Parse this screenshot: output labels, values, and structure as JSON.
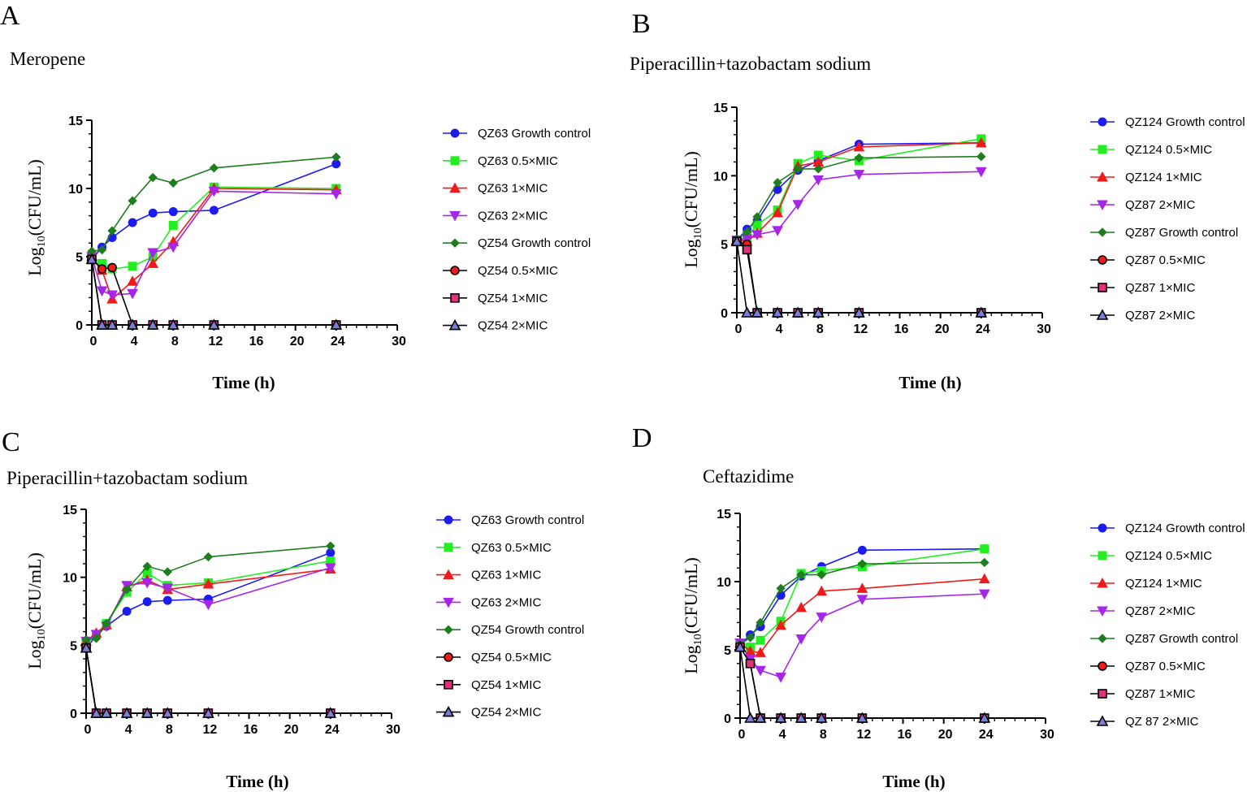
{
  "colors": {
    "blue": "#1c1cf0",
    "green": "#22ee22",
    "red": "#f01a1a",
    "purple": "#a526e8",
    "dkgreen": "#1e7d1e",
    "pink": "#e0317a",
    "black": "#000000",
    "lilac": "#7d7ddc"
  },
  "chart_data": [
    {
      "type": "line",
      "label": "A",
      "title": "Meropene",
      "xlabel": "Time (h)",
      "ylabel_main": "Log",
      "ylabel_sub": "10",
      "ylabel_rest": "(CFU/mL)",
      "xlim": [
        0,
        30
      ],
      "ylim": [
        0,
        15
      ],
      "xticks": [
        0,
        4,
        8,
        12,
        16,
        20,
        24,
        30
      ],
      "xtick_labels": [
        "0",
        "4",
        "8",
        "12",
        "16",
        "20",
        "24",
        "30"
      ],
      "yticks": [
        0,
        5,
        10,
        15
      ],
      "ytick_labels": [
        "0",
        "5",
        "10",
        "15"
      ],
      "series": [
        {
          "name": "QZ63 Growth control",
          "color": "blue",
          "marker": "circle",
          "x": [
            0,
            1,
            2,
            4,
            6,
            8,
            12,
            24
          ],
          "y": [
            4.8,
            5.7,
            6.4,
            7.5,
            8.2,
            8.3,
            8.4,
            11.8
          ]
        },
        {
          "name": "QZ63 0.5×MIC",
          "color": "green",
          "marker": "square",
          "x": [
            0,
            1,
            2,
            4,
            6,
            8,
            12,
            24
          ],
          "y": [
            5.0,
            4.5,
            4.1,
            4.3,
            5.0,
            7.3,
            10.1,
            10.0
          ]
        },
        {
          "name": "QZ63 1×MIC",
          "color": "red",
          "marker": "triangle",
          "x": [
            0,
            1,
            2,
            4,
            6,
            8,
            12,
            24
          ],
          "y": [
            5.0,
            4.0,
            1.9,
            3.2,
            4.5,
            6.1,
            10.0,
            9.9
          ]
        },
        {
          "name": "QZ63 2×MIC",
          "color": "purple",
          "marker": "tri-down",
          "x": [
            0,
            1,
            2,
            4,
            6,
            8,
            12,
            24
          ],
          "y": [
            5.0,
            2.5,
            2.2,
            2.3,
            5.3,
            5.7,
            9.8,
            9.6
          ]
        },
        {
          "name": "QZ54 Growth control",
          "color": "dkgreen",
          "marker": "diamond",
          "x": [
            0,
            1,
            2,
            4,
            6,
            8,
            12,
            24
          ],
          "y": [
            5.4,
            5.5,
            6.9,
            9.1,
            10.8,
            10.4,
            11.5,
            12.3
          ]
        },
        {
          "name": "QZ54 0.5×MIC",
          "color": "red",
          "edge": "black",
          "marker": "circle",
          "x": [
            0,
            1,
            2,
            4,
            6,
            8,
            12,
            24
          ],
          "y": [
            4.8,
            4.1,
            4.2,
            0,
            0,
            0,
            0,
            0
          ]
        },
        {
          "name": "QZ54 1×MIC",
          "color": "pink",
          "edge": "black",
          "marker": "square",
          "x": [
            0,
            1,
            2,
            4,
            6,
            8,
            12,
            24
          ],
          "y": [
            4.8,
            0,
            0,
            0,
            0,
            0,
            0,
            0
          ]
        },
        {
          "name": "QZ54 2×MIC",
          "color": "lilac",
          "edge": "black",
          "marker": "triangle",
          "x": [
            0,
            1,
            2,
            4,
            6,
            8,
            12,
            24
          ],
          "y": [
            4.8,
            0,
            0,
            0,
            0,
            0,
            0,
            0
          ]
        }
      ]
    },
    {
      "type": "line",
      "label": "B",
      "title": "Piperacillin+tazobactam sodium",
      "xlabel": "Time (h)",
      "ylabel_main": "Log",
      "ylabel_sub": "10",
      "ylabel_rest": "(CFU/mL)",
      "xlim": [
        0,
        30
      ],
      "ylim": [
        0,
        15
      ],
      "xticks": [
        0,
        4,
        8,
        12,
        16,
        20,
        24,
        30
      ],
      "xtick_labels": [
        "0",
        "4",
        "8",
        "12",
        "16",
        "20",
        "24",
        "30"
      ],
      "yticks": [
        0,
        5,
        10,
        15
      ],
      "ytick_labels": [
        "0",
        "5",
        "10",
        "15"
      ],
      "series": [
        {
          "name": "QZ124 Growth control",
          "color": "blue",
          "marker": "circle",
          "x": [
            0,
            1,
            2,
            4,
            6,
            8,
            12,
            24
          ],
          "y": [
            5.3,
            6.1,
            6.7,
            9.0,
            10.4,
            11.1,
            12.3,
            12.4
          ]
        },
        {
          "name": "QZ124  0.5×MIC",
          "color": "green",
          "marker": "square",
          "x": [
            0,
            1,
            2,
            4,
            6,
            8,
            12,
            24
          ],
          "y": [
            5.3,
            5.5,
            6.4,
            7.5,
            10.9,
            11.5,
            11.1,
            12.7
          ]
        },
        {
          "name": "QZ124 1×MIC",
          "color": "red",
          "marker": "triangle",
          "x": [
            0,
            1,
            2,
            4,
            6,
            8,
            12,
            24
          ],
          "y": [
            5.3,
            5.2,
            5.8,
            7.3,
            10.7,
            11.0,
            12.1,
            12.4
          ]
        },
        {
          "name": "QZ87  2×MIC",
          "color": "purple",
          "marker": "tri-down",
          "x": [
            0,
            1,
            2,
            4,
            6,
            8,
            12,
            24
          ],
          "y": [
            5.3,
            5.4,
            5.7,
            6.0,
            7.9,
            9.7,
            10.1,
            10.3
          ]
        },
        {
          "name": "QZ87 Growth control",
          "color": "dkgreen",
          "marker": "diamond",
          "x": [
            0,
            1,
            2,
            4,
            6,
            8,
            12,
            24
          ],
          "y": [
            5.4,
            5.9,
            7.0,
            9.5,
            10.5,
            10.5,
            11.3,
            11.4
          ]
        },
        {
          "name": "QZ87  0.5×MIC",
          "color": "red",
          "edge": "black",
          "marker": "circle",
          "x": [
            0,
            1,
            2,
            4,
            6,
            8,
            12,
            24
          ],
          "y": [
            5.2,
            5.0,
            0,
            0,
            0,
            0,
            0,
            0
          ]
        },
        {
          "name": "QZ87 1×MIC",
          "color": "pink",
          "edge": "black",
          "marker": "square",
          "x": [
            0,
            1,
            2,
            4,
            6,
            8,
            12,
            24
          ],
          "y": [
            5.2,
            4.6,
            0,
            0,
            0,
            0,
            0,
            0
          ]
        },
        {
          "name": "QZ87  2×MIC",
          "color": "lilac",
          "edge": "black",
          "marker": "triangle",
          "x": [
            0,
            1,
            2,
            4,
            6,
            8,
            12,
            24
          ],
          "y": [
            5.2,
            0,
            0,
            0,
            0,
            0,
            0,
            0
          ]
        }
      ]
    },
    {
      "type": "line",
      "label": "C",
      "title": "Piperacillin+tazobactam sodium",
      "xlabel": "Time (h)",
      "ylabel_main": "Log",
      "ylabel_sub": "10",
      "ylabel_rest": "(CFU/mL)",
      "xlim": [
        0,
        30
      ],
      "ylim": [
        0,
        15
      ],
      "xticks": [
        0,
        4,
        8,
        12,
        16,
        20,
        24,
        30
      ],
      "xtick_labels": [
        "0",
        "4",
        "8",
        "12",
        "16",
        "20",
        "24",
        "30"
      ],
      "yticks": [
        0,
        5,
        10,
        15
      ],
      "ytick_labels": [
        "0",
        "5",
        "10",
        "15"
      ],
      "series": [
        {
          "name": "QZ63 Growth control",
          "color": "blue",
          "marker": "circle",
          "x": [
            0,
            1,
            2,
            4,
            6,
            8,
            12,
            24
          ],
          "y": [
            4.8,
            5.7,
            6.4,
            7.5,
            8.2,
            8.3,
            8.4,
            11.8
          ]
        },
        {
          "name": "QZ63 0.5×MIC",
          "color": "green",
          "marker": "square",
          "x": [
            0,
            1,
            2,
            4,
            6,
            8,
            12,
            24
          ],
          "y": [
            5.3,
            5.8,
            6.6,
            8.9,
            10.3,
            9.4,
            9.6,
            11.2
          ]
        },
        {
          "name": "QZ63 1×MIC",
          "color": "red",
          "marker": "triangle",
          "x": [
            0,
            1,
            2,
            4,
            6,
            8,
            12,
            24
          ],
          "y": [
            5.3,
            5.9,
            6.5,
            9.3,
            9.8,
            9.1,
            9.5,
            10.6
          ]
        },
        {
          "name": "QZ63 2×MIC",
          "color": "purple",
          "marker": "tri-down",
          "x": [
            0,
            1,
            2,
            4,
            6,
            8,
            12,
            24
          ],
          "y": [
            5.3,
            5.8,
            6.4,
            9.4,
            9.6,
            9.2,
            8.0,
            10.7
          ]
        },
        {
          "name": "QZ54 Growth control",
          "color": "dkgreen",
          "marker": "diamond",
          "x": [
            0,
            1,
            2,
            4,
            6,
            8,
            12,
            24
          ],
          "y": [
            5.4,
            5.5,
            6.6,
            9.1,
            10.8,
            10.4,
            11.5,
            12.3
          ]
        },
        {
          "name": "QZ54 0.5×MIC",
          "color": "red",
          "edge": "black",
          "marker": "circle",
          "x": [
            0,
            1,
            2,
            4,
            6,
            8,
            12,
            24
          ],
          "y": [
            4.8,
            0,
            0,
            0,
            0,
            0,
            0,
            0
          ]
        },
        {
          "name": "QZ54 1×MIC",
          "color": "pink",
          "edge": "black",
          "marker": "square",
          "x": [
            0,
            1,
            2,
            4,
            6,
            8,
            12,
            24
          ],
          "y": [
            4.8,
            0,
            0,
            0,
            0,
            0,
            0,
            0
          ]
        },
        {
          "name": "QZ54 2×MIC",
          "color": "lilac",
          "edge": "black",
          "marker": "triangle",
          "x": [
            0,
            1,
            2,
            4,
            6,
            8,
            12,
            24
          ],
          "y": [
            4.8,
            0,
            0,
            0,
            0,
            0,
            0,
            0
          ]
        }
      ]
    },
    {
      "type": "line",
      "label": "D",
      "title": "Ceftazidime",
      "xlabel": "Time (h)",
      "ylabel_main": "Log",
      "ylabel_sub": "10",
      "ylabel_rest": "(CFU/mL)",
      "xlim": [
        0,
        30
      ],
      "ylim": [
        0,
        15
      ],
      "xticks": [
        0,
        4,
        8,
        12,
        16,
        20,
        24,
        30
      ],
      "xtick_labels": [
        "0",
        "4",
        "8",
        "12",
        "16",
        "20",
        "24",
        "30"
      ],
      "yticks": [
        0,
        5,
        10,
        15
      ],
      "ytick_labels": [
        "0",
        "5",
        "10",
        "15"
      ],
      "series": [
        {
          "name": "QZ124 Growth control",
          "color": "blue",
          "marker": "circle",
          "x": [
            0,
            1,
            2,
            4,
            6,
            8,
            12,
            24
          ],
          "y": [
            5.3,
            6.1,
            6.7,
            9.0,
            10.4,
            11.1,
            12.3,
            12.4
          ]
        },
        {
          "name": "QZ124  0.5×MIC",
          "color": "green",
          "marker": "square",
          "x": [
            0,
            1,
            2,
            4,
            6,
            8,
            12,
            24
          ],
          "y": [
            5.5,
            5.2,
            5.7,
            7.1,
            10.6,
            10.8,
            11.1,
            12.4
          ]
        },
        {
          "name": "QZ124 1×MIC",
          "color": "red",
          "marker": "triangle",
          "x": [
            0,
            1,
            2,
            4,
            6,
            8,
            12,
            24
          ],
          "y": [
            5.5,
            4.9,
            4.8,
            6.8,
            8.1,
            9.3,
            9.5,
            10.2
          ]
        },
        {
          "name": "QZ87  2×MIC",
          "color": "purple",
          "marker": "tri-down",
          "x": [
            0,
            1,
            2,
            4,
            6,
            8,
            12,
            24
          ],
          "y": [
            5.5,
            4.3,
            3.5,
            3.0,
            5.8,
            7.4,
            8.7,
            9.1
          ]
        },
        {
          "name": "QZ87 Growth control",
          "color": "dkgreen",
          "marker": "diamond",
          "x": [
            0,
            1,
            2,
            4,
            6,
            8,
            12,
            24
          ],
          "y": [
            5.4,
            5.9,
            7.0,
            9.5,
            10.5,
            10.5,
            11.3,
            11.4
          ]
        },
        {
          "name": "QZ87  0.5×MIC",
          "color": "red",
          "edge": "black",
          "marker": "circle",
          "x": [
            0,
            1,
            2,
            4,
            6,
            8,
            12,
            24
          ],
          "y": [
            5.2,
            4.0,
            0,
            0,
            0,
            0,
            0,
            0
          ]
        },
        {
          "name": "QZ87 1×MIC",
          "color": "pink",
          "edge": "black",
          "marker": "square",
          "x": [
            0,
            1,
            2,
            4,
            6,
            8,
            12,
            24
          ],
          "y": [
            5.2,
            4.0,
            0,
            0,
            0,
            0,
            0,
            0
          ]
        },
        {
          "name": "QZ 87  2×MIC",
          "color": "lilac",
          "edge": "black",
          "marker": "triangle",
          "x": [
            0,
            1,
            2,
            4,
            6,
            8,
            12,
            24
          ],
          "y": [
            5.2,
            0,
            0,
            0,
            0,
            0,
            0,
            0
          ]
        }
      ]
    }
  ]
}
